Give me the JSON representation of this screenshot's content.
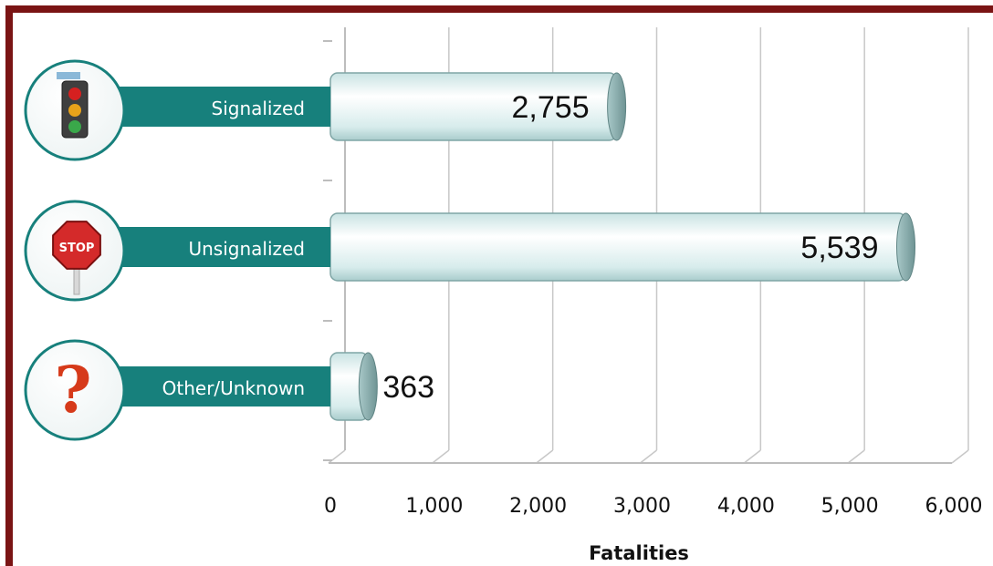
{
  "chart_data": {
    "type": "bar",
    "orientation": "horizontal",
    "categories": [
      "Signalized",
      "Unsignalized",
      "Other/Unknown"
    ],
    "values": [
      2755,
      5539,
      363
    ],
    "value_labels": [
      "2,755",
      "5,539",
      "363"
    ],
    "icons": [
      "traffic-light-icon",
      "stop-sign-icon",
      "question-mark-icon"
    ],
    "xlabel": "Fatalities",
    "xlim": [
      0,
      6000
    ],
    "xticks": [
      0,
      1000,
      2000,
      3000,
      4000,
      5000,
      6000
    ],
    "xtick_labels": [
      "0",
      "1,000",
      "2,000",
      "3,000",
      "4,000",
      "5,000",
      "6,000"
    ],
    "grid": true,
    "colors": {
      "frame": "#7a1414",
      "label_band": "#17807c",
      "bar_fill": "#e6f3f3",
      "bar_edge": "#7fa5a5",
      "grid": "#c8c8c8"
    }
  }
}
